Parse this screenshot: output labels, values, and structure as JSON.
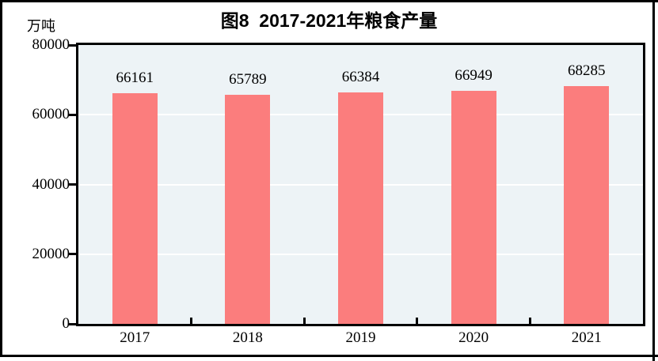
{
  "figure": {
    "title": "图8  2017-2021年粮食产量",
    "unit_label": "万吨"
  },
  "chart_data": {
    "type": "bar",
    "title": "图8  2017-2021年粮食产量",
    "ylabel": "万吨",
    "xlabel": "",
    "categories": [
      "2017",
      "2018",
      "2019",
      "2020",
      "2021"
    ],
    "values": [
      66161,
      65789,
      66384,
      66949,
      68285
    ],
    "data_labels": [
      "66161",
      "65789",
      "66384",
      "66949",
      "68285"
    ],
    "ylim": [
      0,
      80000
    ],
    "y_ticks": [
      0,
      20000,
      40000,
      60000,
      80000
    ],
    "grid": "horizontal white gridlines",
    "legend": "none",
    "colors": {
      "bar": "#FB7D7D",
      "plot_background": "#EDF3F6",
      "gridline": "#FFFFFF",
      "axis_and_frame": "#000000",
      "text": "#000000",
      "page_background": "#FFFFFF"
    }
  }
}
